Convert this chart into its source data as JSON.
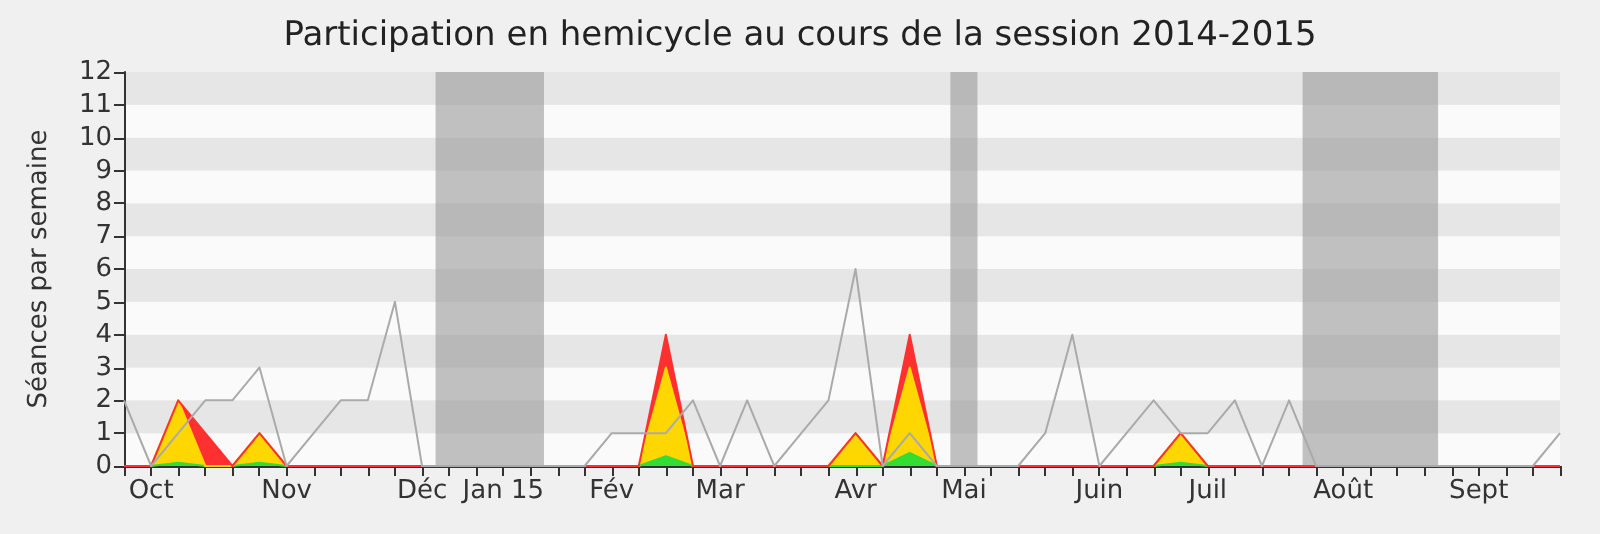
{
  "chart_data": {
    "type": "area",
    "title": "Participation en hemicycle au cours de la session 2014-2015",
    "ylabel": "Séances par semaine",
    "categories": [
      null,
      "Oct",
      null,
      null,
      null,
      null,
      "Nov",
      null,
      null,
      null,
      null,
      "Déc",
      null,
      null,
      "Jan 15",
      null,
      null,
      null,
      "Fév",
      null,
      null,
      null,
      "Mar",
      null,
      null,
      null,
      null,
      "Avr",
      null,
      null,
      null,
      "Mai",
      null,
      null,
      null,
      null,
      "Juin",
      null,
      null,
      null,
      "Juil",
      null,
      null,
      null,
      null,
      "Août",
      null,
      null,
      null,
      null,
      "Sept",
      null,
      null,
      null
    ],
    "stacked": true,
    "series": [
      {
        "color": "#33dd33",
        "values": [
          0,
          0,
          0.1,
          0,
          0,
          0.1,
          0,
          0,
          0,
          0,
          0,
          0,
          0,
          0,
          0,
          0,
          0,
          0,
          0,
          0,
          0.3,
          0,
          0,
          0,
          0,
          0,
          0,
          0,
          0,
          0.4,
          0,
          0,
          0,
          0,
          0,
          0,
          0,
          0,
          0,
          0.1,
          0,
          0,
          0,
          0,
          0,
          0,
          0,
          0,
          0,
          0,
          0,
          0,
          0,
          0
        ]
      },
      {
        "color": "#ffd700",
        "values": [
          0,
          0,
          1.9,
          0,
          0,
          0.9,
          0,
          0,
          0,
          0,
          0,
          0,
          0,
          0,
          0,
          0,
          0,
          0,
          0,
          0,
          2.7,
          0,
          0,
          0,
          0,
          0,
          0,
          1,
          0,
          2.6,
          0,
          0,
          0,
          0,
          0,
          0,
          0,
          0,
          0,
          0.9,
          0,
          0,
          0,
          0,
          0,
          0,
          0,
          0,
          0,
          0,
          0,
          0,
          0,
          0
        ]
      },
      {
        "color": "#ff3030",
        "values": [
          0,
          0,
          0,
          1,
          0,
          0,
          0,
          0,
          0,
          0,
          0,
          0,
          0,
          0,
          0,
          0,
          0,
          0,
          0,
          0,
          1,
          0,
          0,
          0,
          0,
          0,
          0,
          0,
          0,
          1,
          0,
          0,
          0,
          0,
          0,
          0,
          0,
          0,
          0,
          0,
          0,
          0,
          0,
          0,
          0,
          0,
          0,
          0,
          0,
          0,
          0,
          0,
          0,
          0
        ]
      },
      {
        "type": "line",
        "color": "#aaaaaa",
        "values": [
          2,
          0,
          1,
          2,
          2,
          3,
          0,
          1,
          2,
          2,
          5,
          0,
          0,
          0,
          0,
          0,
          0,
          0,
          1,
          1,
          1,
          2,
          0,
          2,
          0,
          1,
          2,
          6,
          0,
          1,
          0,
          0,
          0,
          0,
          1,
          4,
          0,
          1,
          2,
          1,
          1,
          2,
          0,
          2,
          0,
          0,
          0,
          0,
          0,
          0,
          0,
          0,
          0,
          1
        ]
      }
    ],
    "ylim": [
      0,
      12
    ],
    "yticks": [
      0,
      1,
      2,
      3,
      4,
      5,
      6,
      7,
      8,
      9,
      10,
      11,
      12
    ]
  }
}
